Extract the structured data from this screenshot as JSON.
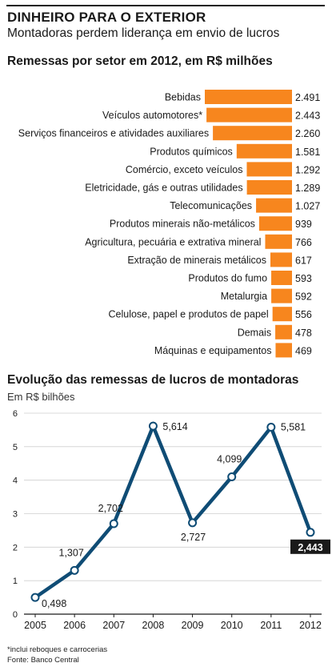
{
  "header": {
    "headline": "DINHEIRO PARA O EXTERIOR",
    "subhead": "Montadoras perdem liderança em envio de lucros"
  },
  "chart_data": [
    {
      "type": "bar",
      "orientation": "horizontal",
      "title": "Remessas por setor em 2012, em R$ milhões",
      "categories": [
        "Bebidas",
        "Veículos automotores*",
        "Serviços financeiros e atividades auxiliares",
        "Produtos químicos",
        "Comércio, exceto veículos",
        "Eletricidade, gás e outras utilidades",
        "Telecomunicações",
        "Produtos minerais não-metálicos",
        "Agricultura, pecuária e extrativa mineral",
        "Extração de minerais metálicos",
        "Produtos do fumo",
        "Metalurgia",
        "Celulose, papel e produtos de papel",
        "Demais",
        "Máquinas e equipamentos"
      ],
      "values": [
        2491,
        2443,
        2260,
        1581,
        1292,
        1289,
        1027,
        939,
        766,
        617,
        593,
        592,
        556,
        478,
        469
      ],
      "value_labels": [
        "2.491",
        "2.443",
        "2.260",
        "1.581",
        "1.292",
        "1.289",
        "1.027",
        "939",
        "766",
        "617",
        "593",
        "592",
        "556",
        "478",
        "469"
      ],
      "color": "#f7861e",
      "legend": "none",
      "grid": false
    },
    {
      "type": "line",
      "title": "Evolução das remessas de lucros de montadoras",
      "subtitle": "Em R$ bilhões",
      "x": [
        "2005",
        "2006",
        "2007",
        "2008",
        "2009",
        "2010",
        "2011",
        "2012"
      ],
      "values": [
        0.498,
        1.307,
        2.702,
        5.614,
        2.727,
        4.099,
        5.581,
        2.443
      ],
      "value_labels": [
        "0,498",
        "1,307",
        "2,702",
        "5,614",
        "2,727",
        "4,099",
        "5,581",
        "2,443"
      ],
      "highlighted_label_index": 7,
      "yticks": [
        "0",
        "1",
        "2",
        "3",
        "4",
        "5",
        "6"
      ],
      "ylim": [
        0,
        6
      ],
      "grid": true,
      "line_color": "#0f4c75",
      "legend": "none"
    }
  ],
  "footnote": {
    "line1": "*inclui reboques e carrocerias",
    "line2": "Fonte: Banco Central"
  }
}
